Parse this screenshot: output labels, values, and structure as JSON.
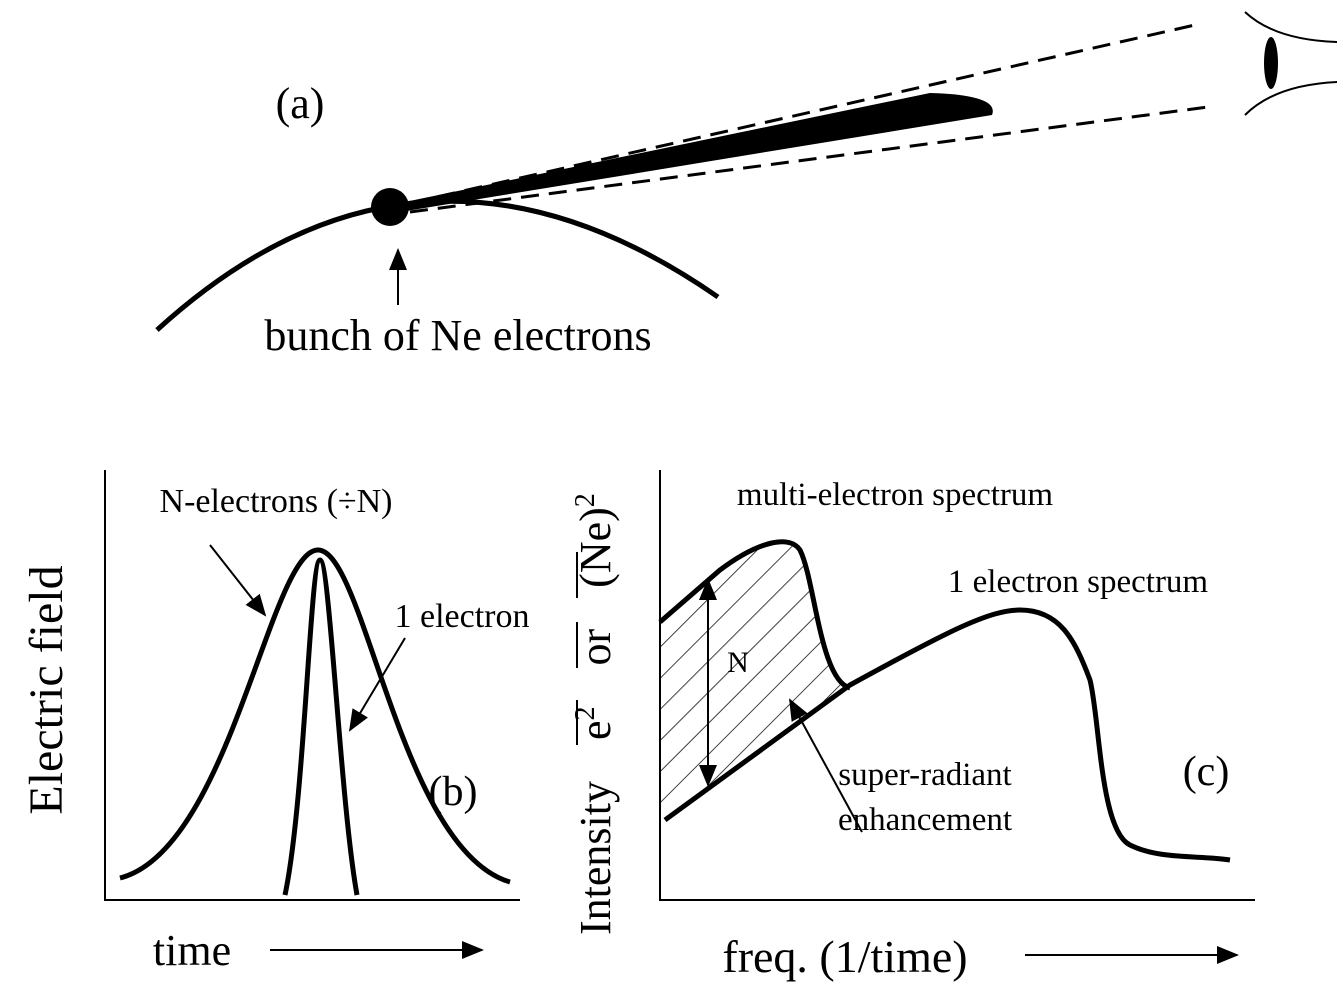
{
  "panel_a": {
    "label": "(a)",
    "caption": "bunch of Ne electrons"
  },
  "panel_b": {
    "y_label": "Electric field",
    "curve_wide_label": "N-electrons (÷N)",
    "curve_narrow_label": "1 electron",
    "label": "(b)",
    "x_label": "time"
  },
  "panel_c": {
    "y_label": {
      "word": "Intensity",
      "e": "e",
      "e_power": "2",
      "or": "or",
      "ne": "(Ne)",
      "ne_power": "2"
    },
    "multi_label": "multi-electron spectrum",
    "single_label": "1 electron spectrum",
    "factor_label": "N",
    "enhancement_label": [
      "super-radiant",
      "enhancement"
    ],
    "label": "(c)",
    "x_label": "freq. (1/time)"
  }
}
